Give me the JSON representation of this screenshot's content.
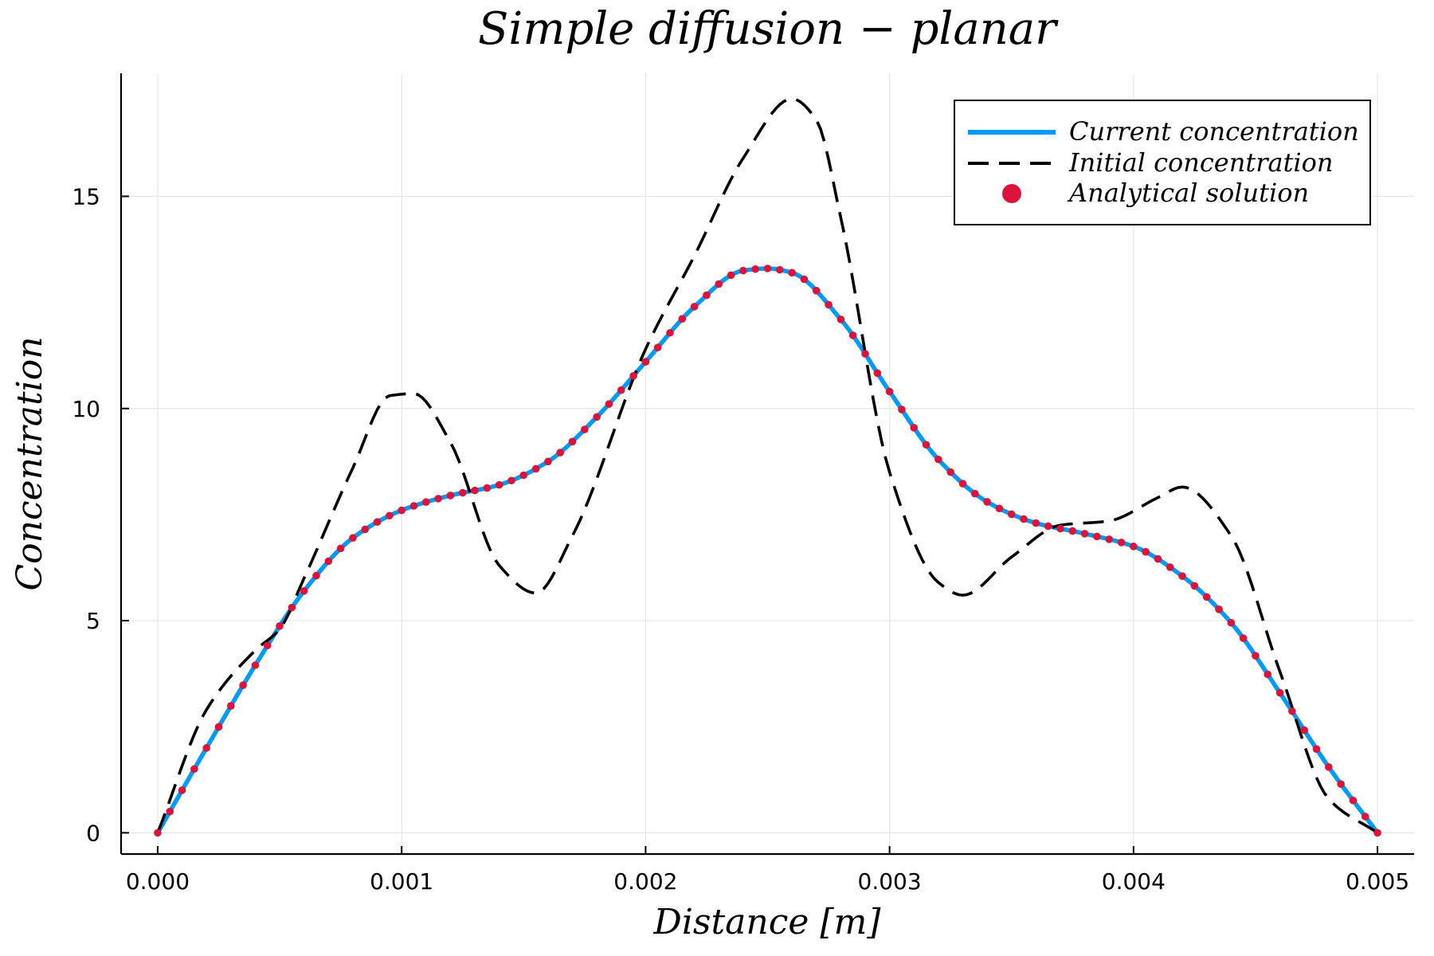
{
  "chart_data": {
    "type": "line",
    "title": "Simple diffusion − planar",
    "xlabel": "Distance [m]",
    "ylabel": "Concentration",
    "xlim": [
      -0.00015,
      0.00515
    ],
    "ylim": [
      -0.5,
      17.9
    ],
    "xticks": [
      0,
      0.001,
      0.002,
      0.003,
      0.004,
      0.005
    ],
    "xtick_labels": [
      "0.000",
      "0.001",
      "0.002",
      "0.003",
      "0.004",
      "0.005"
    ],
    "yticks": [
      0,
      5,
      10,
      15
    ],
    "ytick_labels": [
      "0",
      "5",
      "10",
      "15"
    ],
    "grid": true,
    "legend_position": "top-right",
    "series": [
      {
        "name": "Current concentration",
        "style": "solid",
        "color": "#009af9",
        "x": [
          0,
          0.0002,
          0.0004,
          0.0006,
          0.0008,
          0.001,
          0.0012,
          0.0014,
          0.0016,
          0.0018,
          0.002,
          0.0022,
          0.0024,
          0.0025,
          0.0026,
          0.0028,
          0.003,
          0.0032,
          0.0034,
          0.0036,
          0.0038,
          0.004,
          0.0042,
          0.0044,
          0.0046,
          0.0048,
          0.005
        ],
        "y": [
          0,
          2.0,
          3.95,
          5.7,
          6.95,
          7.6,
          7.95,
          8.2,
          8.75,
          9.8,
          11.1,
          12.4,
          13.25,
          13.3,
          13.2,
          12.1,
          10.4,
          8.8,
          7.8,
          7.3,
          7.05,
          6.75,
          6.05,
          4.95,
          3.3,
          1.55,
          0
        ]
      },
      {
        "name": "Initial concentration",
        "style": "dashed",
        "color": "#000000",
        "x": [
          0,
          0.0002,
          0.0004,
          0.0005,
          0.0006,
          0.0008,
          0.00095,
          0.00105,
          0.0012,
          0.0014,
          0.00155,
          0.0017,
          0.002,
          0.0022,
          0.0024,
          0.0026,
          0.0027,
          0.0028,
          0.003,
          0.0032,
          0.0033,
          0.0035,
          0.0037,
          0.0039,
          0.0041,
          0.0042,
          0.0044,
          0.0046,
          0.0048,
          0.005
        ],
        "y": [
          0,
          2.9,
          4.3,
          4.8,
          6.0,
          8.6,
          10.3,
          10.35,
          9.2,
          6.3,
          5.65,
          7.0,
          11.4,
          13.6,
          15.9,
          17.3,
          16.8,
          14.5,
          8.5,
          5.9,
          5.6,
          6.5,
          7.25,
          7.35,
          7.9,
          8.15,
          7.0,
          3.8,
          0.8,
          0
        ]
      },
      {
        "name": "Analytical solution",
        "style": "markers",
        "color": "#dc143c",
        "x": [
          0,
          0.0002,
          0.0004,
          0.0006,
          0.0008,
          0.001,
          0.0012,
          0.0014,
          0.0016,
          0.0018,
          0.002,
          0.0022,
          0.0024,
          0.0025,
          0.0026,
          0.0028,
          0.003,
          0.0032,
          0.0034,
          0.0036,
          0.0038,
          0.004,
          0.0042,
          0.0044,
          0.0046,
          0.0048,
          0.005
        ],
        "y": [
          0,
          2.0,
          3.95,
          5.7,
          6.95,
          7.6,
          7.95,
          8.2,
          8.75,
          9.8,
          11.1,
          12.4,
          13.25,
          13.3,
          13.2,
          12.1,
          10.4,
          8.8,
          7.8,
          7.3,
          7.05,
          6.75,
          6.05,
          4.95,
          3.3,
          1.55,
          0
        ]
      }
    ]
  }
}
